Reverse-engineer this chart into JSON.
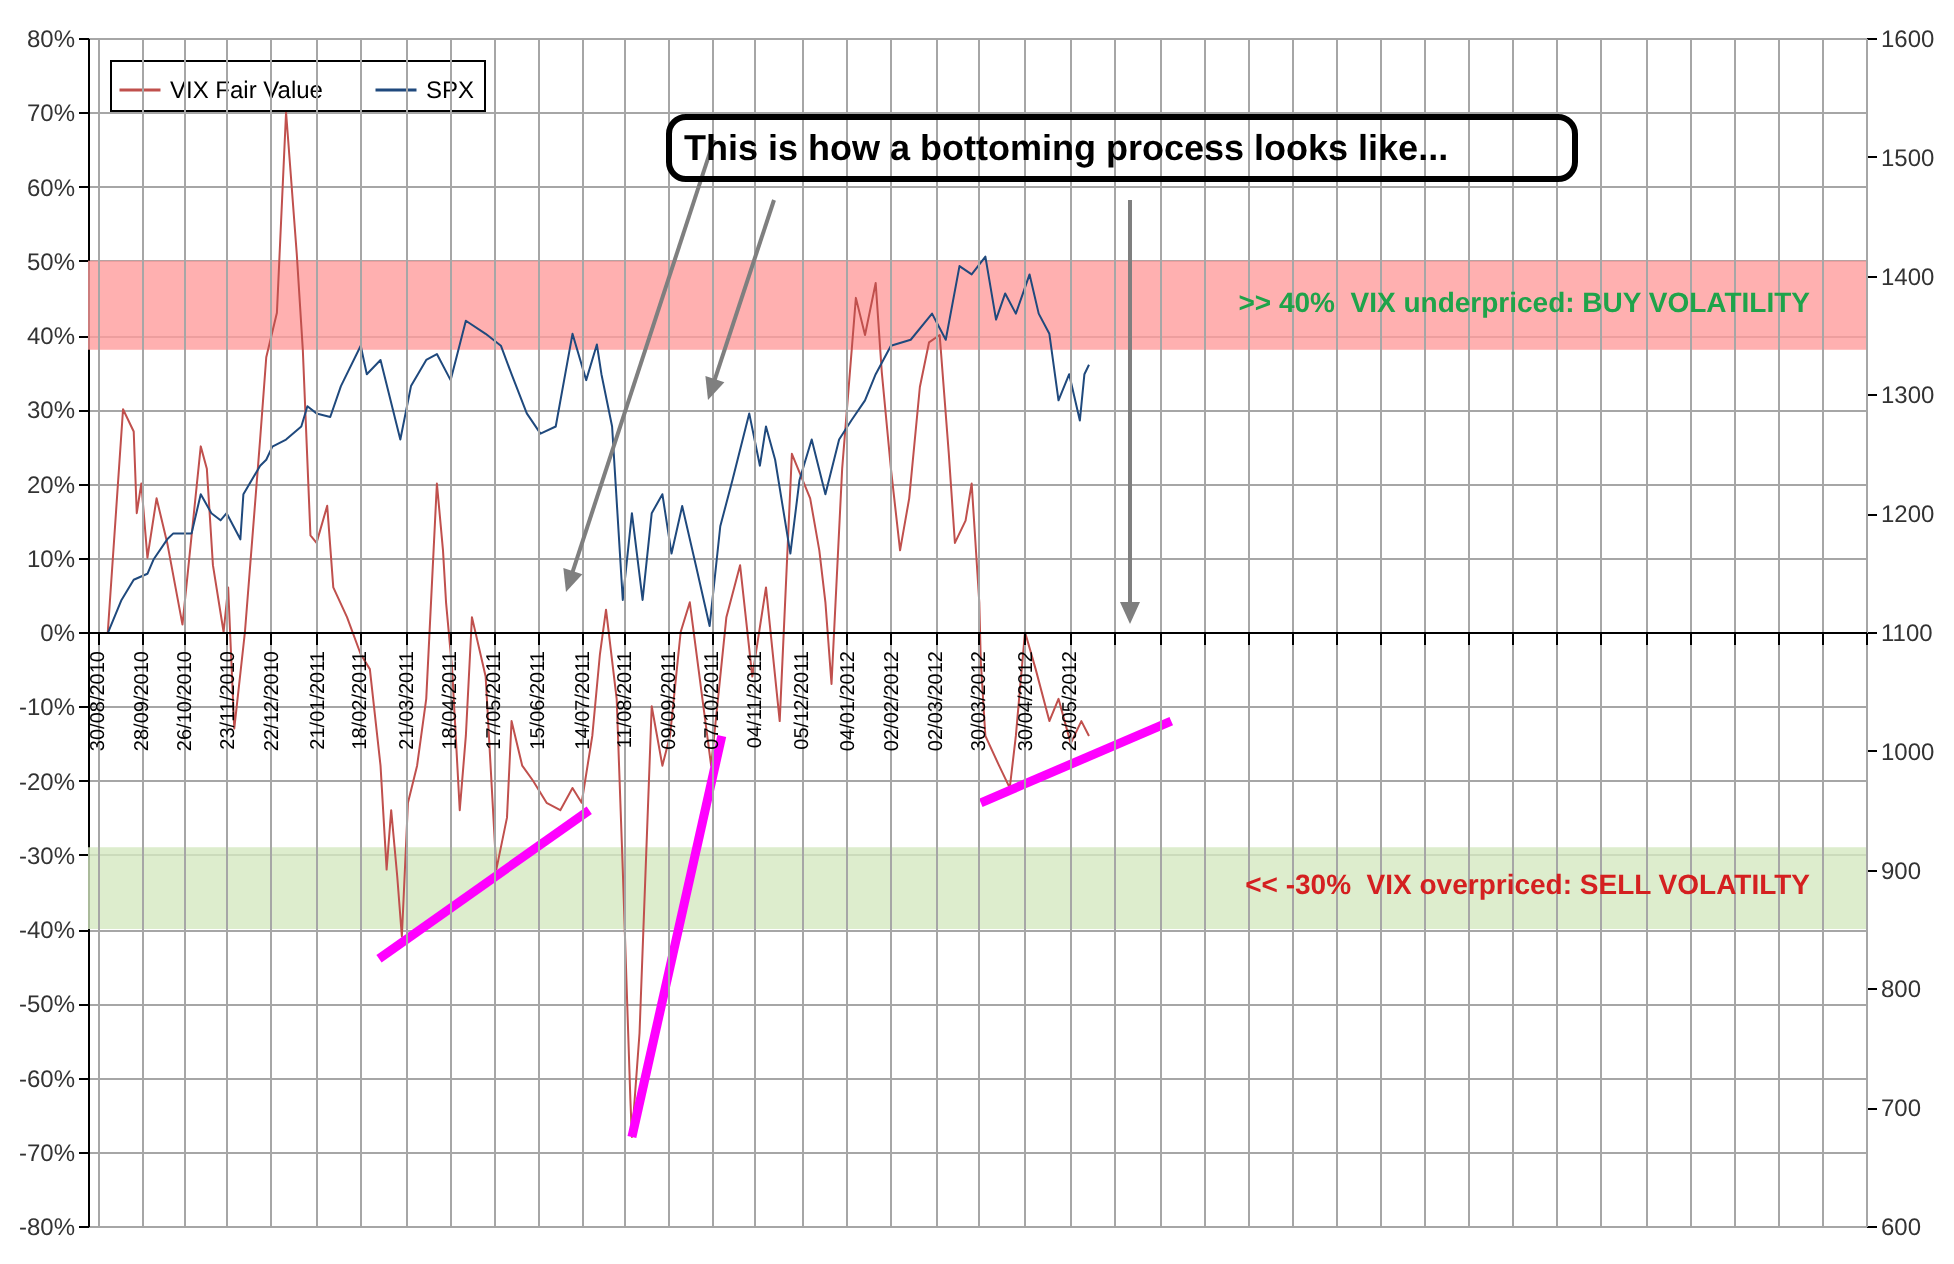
{
  "chart_data": {
    "type": "line",
    "annotations": [
      "This is how a bottoming process looks like..."
    ],
    "xlim": [
      "2010-08-24",
      "2013-11-03"
    ],
    "xticks": [
      {
        "value": "2010-08-30",
        "label": "30/08/2010"
      },
      {
        "value": "2010-09-28",
        "label": "28/09/2010"
      },
      {
        "value": "2010-10-26",
        "label": "26/10/2010"
      },
      {
        "value": "2010-11-23",
        "label": "23/11/2010"
      },
      {
        "value": "2010-12-22",
        "label": "22/12/2010"
      },
      {
        "value": "2011-01-21",
        "label": "21/01/2011"
      },
      {
        "value": "2011-02-18",
        "label": "18/02/2011"
      },
      {
        "value": "2011-03-21",
        "label": "21/03/2011"
      },
      {
        "value": "2011-04-18",
        "label": "18/04/2011"
      },
      {
        "value": "2011-05-17",
        "label": "17/05/2011"
      },
      {
        "value": "2011-06-15",
        "label": "15/06/2011"
      },
      {
        "value": "2011-07-14",
        "label": "14/07/2011"
      },
      {
        "value": "2011-08-11",
        "label": "11/08/2011"
      },
      {
        "value": "2011-09-09",
        "label": "09/09/2011"
      },
      {
        "value": "2011-10-07",
        "label": "07/10/2011"
      },
      {
        "value": "2011-11-04",
        "label": "04/11/2011"
      },
      {
        "value": "2011-12-05",
        "label": "05/12/2011"
      },
      {
        "value": "2012-01-04",
        "label": "04/01/2012"
      },
      {
        "value": "2012-02-02",
        "label": "02/02/2012"
      },
      {
        "value": "2012-03-02",
        "label": "02/03/2012"
      },
      {
        "value": "2012-03-30",
        "label": "30/03/2012"
      },
      {
        "value": "2012-04-30",
        "label": "30/04/2012"
      },
      {
        "value": "2012-05-29",
        "label": "29/05/2012"
      },
      {
        "value": "2012-06-28",
        "label": null
      },
      {
        "value": "2012-07-27",
        "label": null
      },
      {
        "value": "2012-08-25",
        "label": null
      },
      {
        "value": "2012-09-23",
        "label": null
      },
      {
        "value": "2012-10-22",
        "label": null
      },
      {
        "value": "2012-11-20",
        "label": null
      },
      {
        "value": "2012-12-19",
        "label": null
      },
      {
        "value": "2013-01-17",
        "label": null
      },
      {
        "value": "2013-02-15",
        "label": null
      },
      {
        "value": "2013-03-16",
        "label": null
      },
      {
        "value": "2013-04-14",
        "label": null
      },
      {
        "value": "2013-05-13",
        "label": null
      },
      {
        "value": "2013-06-11",
        "label": null
      },
      {
        "value": "2013-07-10",
        "label": null
      },
      {
        "value": "2013-08-08",
        "label": null
      },
      {
        "value": "2013-09-06",
        "label": null
      },
      {
        "value": "2013-10-05",
        "label": null
      },
      {
        "value": "2013-11-03",
        "label": null
      }
    ],
    "ylim": [
      -80,
      80
    ],
    "yticks": [
      {
        "value": -80,
        "label": "-80%"
      },
      {
        "value": -70,
        "label": "-70%"
      },
      {
        "value": -60,
        "label": "-60%"
      },
      {
        "value": -50,
        "label": "-50%"
      },
      {
        "value": -40,
        "label": "-40%"
      },
      {
        "value": -30,
        "label": "-30%"
      },
      {
        "value": -20,
        "label": "-20%"
      },
      {
        "value": -10,
        "label": "-10%"
      },
      {
        "value": 0,
        "label": "0%"
      },
      {
        "value": 10,
        "label": "10%"
      },
      {
        "value": 20,
        "label": "20%"
      },
      {
        "value": 30,
        "label": "30%"
      },
      {
        "value": 40,
        "label": "40%"
      },
      {
        "value": 50,
        "label": "50%"
      },
      {
        "value": 60,
        "label": "60%"
      },
      {
        "value": 70,
        "label": "70%"
      },
      {
        "value": 80,
        "label": "80%"
      }
    ],
    "y2lim": [
      600,
      1600
    ],
    "y2ticks": [
      600,
      700,
      800,
      900,
      1000,
      1100,
      1200,
      1300,
      1400,
      1500,
      1600
    ],
    "grid": true,
    "legend": "top left",
    "bands": [
      {
        "axis": "y",
        "from": 38,
        "to": 50,
        "label": ">> 40%  VIX underpriced: BUY VOLATILITY",
        "color": "#ff9c9c"
      },
      {
        "axis": "y",
        "from": -40,
        "to": -29,
        "label": "<< -30%  VIX overpriced: SELL VOLATILTY",
        "color": "#d5e8c0"
      }
    ],
    "series": [
      {
        "name": "VIX Fair Value",
        "color": "#c0504d",
        "x": [
          "2010-09-06",
          "2010-09-16",
          "2010-09-23",
          "2010-09-25",
          "2010-09-28",
          "2010-10-02",
          "2010-10-08",
          "2010-10-15",
          "2010-10-25",
          "2010-10-31",
          "2010-11-06",
          "2010-11-10",
          "2010-11-14",
          "2010-11-21",
          "2010-11-24",
          "2010-11-28",
          "2010-12-05",
          "2010-12-15",
          "2010-12-19",
          "2010-12-26",
          "2011-01-01",
          "2011-01-08",
          "2011-01-12",
          "2011-01-17",
          "2011-01-21",
          "2011-01-28",
          "2011-02-01",
          "2011-02-10",
          "2011-02-19",
          "2011-02-25",
          "2011-03-04",
          "2011-03-08",
          "2011-03-11",
          "2011-03-15",
          "2011-03-18",
          "2011-03-22",
          "2011-03-28",
          "2011-04-03",
          "2011-04-10",
          "2011-04-14",
          "2011-04-16",
          "2011-04-20",
          "2011-04-25",
          "2011-04-29",
          "2011-05-03",
          "2011-05-12",
          "2011-05-19",
          "2011-05-26",
          "2011-05-29",
          "2011-06-05",
          "2011-06-12",
          "2011-06-21",
          "2011-06-30",
          "2011-07-08",
          "2011-07-14",
          "2011-07-21",
          "2011-07-26",
          "2011-07-30",
          "2011-08-06",
          "2011-08-10",
          "2011-08-15",
          "2011-08-16",
          "2011-08-21",
          "2011-08-25",
          "2011-08-29",
          "2011-09-05",
          "2011-09-10",
          "2011-09-17",
          "2011-09-23",
          "2011-10-07",
          "2011-10-17",
          "2011-10-26",
          "2011-11-03",
          "2011-11-12",
          "2011-11-21",
          "2011-11-29",
          "2011-12-11",
          "2011-12-17",
          "2011-12-21",
          "2011-12-25",
          "2012-01-01",
          "2012-01-10",
          "2012-01-16",
          "2012-01-23",
          "2012-01-27",
          "2012-02-02",
          "2012-02-08",
          "2012-02-14",
          "2012-02-21",
          "2012-02-27",
          "2012-03-05",
          "2012-03-11",
          "2012-03-15",
          "2012-03-22",
          "2012-03-26",
          "2012-03-31",
          "2012-04-01",
          "2012-04-04",
          "2012-04-13",
          "2012-04-20",
          "2012-04-24",
          "2012-04-30",
          "2012-05-07",
          "2012-05-16",
          "2012-05-22",
          "2012-05-30",
          "2012-06-06",
          "2012-06-11"
        ],
        "values": [
          0,
          30,
          27,
          16,
          20,
          10,
          18,
          12,
          1,
          13,
          25,
          22,
          9,
          0,
          6,
          -13,
          0,
          26,
          37,
          43,
          70,
          51,
          38,
          13,
          12,
          17,
          6,
          2,
          -3,
          -5,
          -18,
          -32,
          -24,
          -33,
          -41,
          -23,
          -18,
          -9,
          20,
          11,
          4,
          -5,
          -24,
          -14,
          2,
          -6,
          -32,
          -25,
          -12,
          -18,
          -20,
          -23,
          -24,
          -21,
          -23,
          -14,
          -3,
          3,
          -9,
          -32,
          -63,
          -68,
          -54,
          -32,
          -10,
          -18,
          -14,
          0,
          4,
          -18,
          2,
          9,
          -6,
          6,
          -12,
          24,
          18,
          11,
          4,
          -7,
          22,
          45,
          40,
          47,
          35,
          22,
          11,
          18,
          33,
          39,
          40,
          24,
          12,
          15,
          20,
          4,
          -4,
          -14,
          -18,
          -21,
          -14,
          0,
          -5,
          -12,
          -9,
          -15,
          -12,
          -14
        ]
      },
      {
        "name": "SPX",
        "color": "#1f497d",
        "axis": "y2",
        "x": [
          "2010-09-06",
          "2010-09-15",
          "2010-09-23",
          "2010-10-02",
          "2010-10-06",
          "2010-10-15",
          "2010-10-19",
          "2010-10-31",
          "2010-11-06",
          "2010-11-13",
          "2010-11-19",
          "2010-11-23",
          "2010-12-02",
          "2010-12-04",
          "2010-12-15",
          "2010-12-19",
          "2010-12-23",
          "2011-01-01",
          "2011-01-11",
          "2011-01-15",
          "2011-01-21",
          "2011-01-30",
          "2011-02-06",
          "2011-02-19",
          "2011-02-23",
          "2011-03-04",
          "2011-03-17",
          "2011-03-24",
          "2011-04-03",
          "2011-04-10",
          "2011-04-19",
          "2011-04-29",
          "2011-05-12",
          "2011-05-22",
          "2011-05-29",
          "2011-06-08",
          "2011-06-17",
          "2011-06-27",
          "2011-07-08",
          "2011-07-17",
          "2011-07-24",
          "2011-07-27",
          "2011-08-03",
          "2011-08-10",
          "2011-08-16",
          "2011-08-23",
          "2011-08-29",
          "2011-09-05",
          "2011-09-11",
          "2011-09-18",
          "2011-09-27",
          "2011-10-06",
          "2011-10-13",
          "2011-10-21",
          "2011-11-01",
          "2011-11-08",
          "2011-11-12",
          "2011-11-18",
          "2011-11-28",
          "2011-12-04",
          "2011-12-12",
          "2011-12-21",
          "2011-12-30",
          "2012-01-07",
          "2012-01-16",
          "2012-01-23",
          "2012-02-02",
          "2012-02-15",
          "2012-02-29",
          "2012-03-09",
          "2012-03-18",
          "2012-03-26",
          "2012-04-04",
          "2012-04-11",
          "2012-04-17",
          "2012-04-24",
          "2012-05-03",
          "2012-05-09",
          "2012-05-16",
          "2012-05-22",
          "2012-05-29",
          "2012-06-05",
          "2012-06-08",
          "2012-06-11"
        ],
        "values": [
          1099,
          1127,
          1144,
          1149,
          1161,
          1178,
          1183,
          1183,
          1216,
          1200,
          1194,
          1200,
          1178,
          1216,
          1240,
          1245,
          1256,
          1262,
          1273,
          1290,
          1284,
          1281,
          1307,
          1341,
          1317,
          1329,
          1262,
          1307,
          1329,
          1334,
          1312,
          1362,
          1351,
          1341,
          1317,
          1284,
          1267,
          1273,
          1351,
          1312,
          1342,
          1317,
          1273,
          1127,
          1200,
          1127,
          1200,
          1216,
          1166,
          1206,
          1156,
          1105,
          1189,
          1228,
          1284,
          1240,
          1273,
          1245,
          1166,
          1228,
          1262,
          1216,
          1262,
          1278,
          1295,
          1317,
          1341,
          1346,
          1368,
          1346,
          1408,
          1401,
          1416,
          1363,
          1385,
          1368,
          1401,
          1368,
          1351,
          1295,
          1317,
          1278,
          1317,
          1325
        ]
      },
      {
        "color": "#ff00ff",
        "x": [
          "2011-03-03",
          "2011-07-19"
        ],
        "values": [
          -44,
          -24
        ]
      },
      {
        "color": "#ff00ff",
        "x": [
          "2011-08-16",
          "2011-10-14"
        ],
        "values": [
          -68,
          -14
        ]
      },
      {
        "color": "#ff00ff",
        "x": [
          "2012-04-01",
          "2012-08-04"
        ],
        "values": [
          -23,
          -12
        ]
      }
    ]
  }
}
